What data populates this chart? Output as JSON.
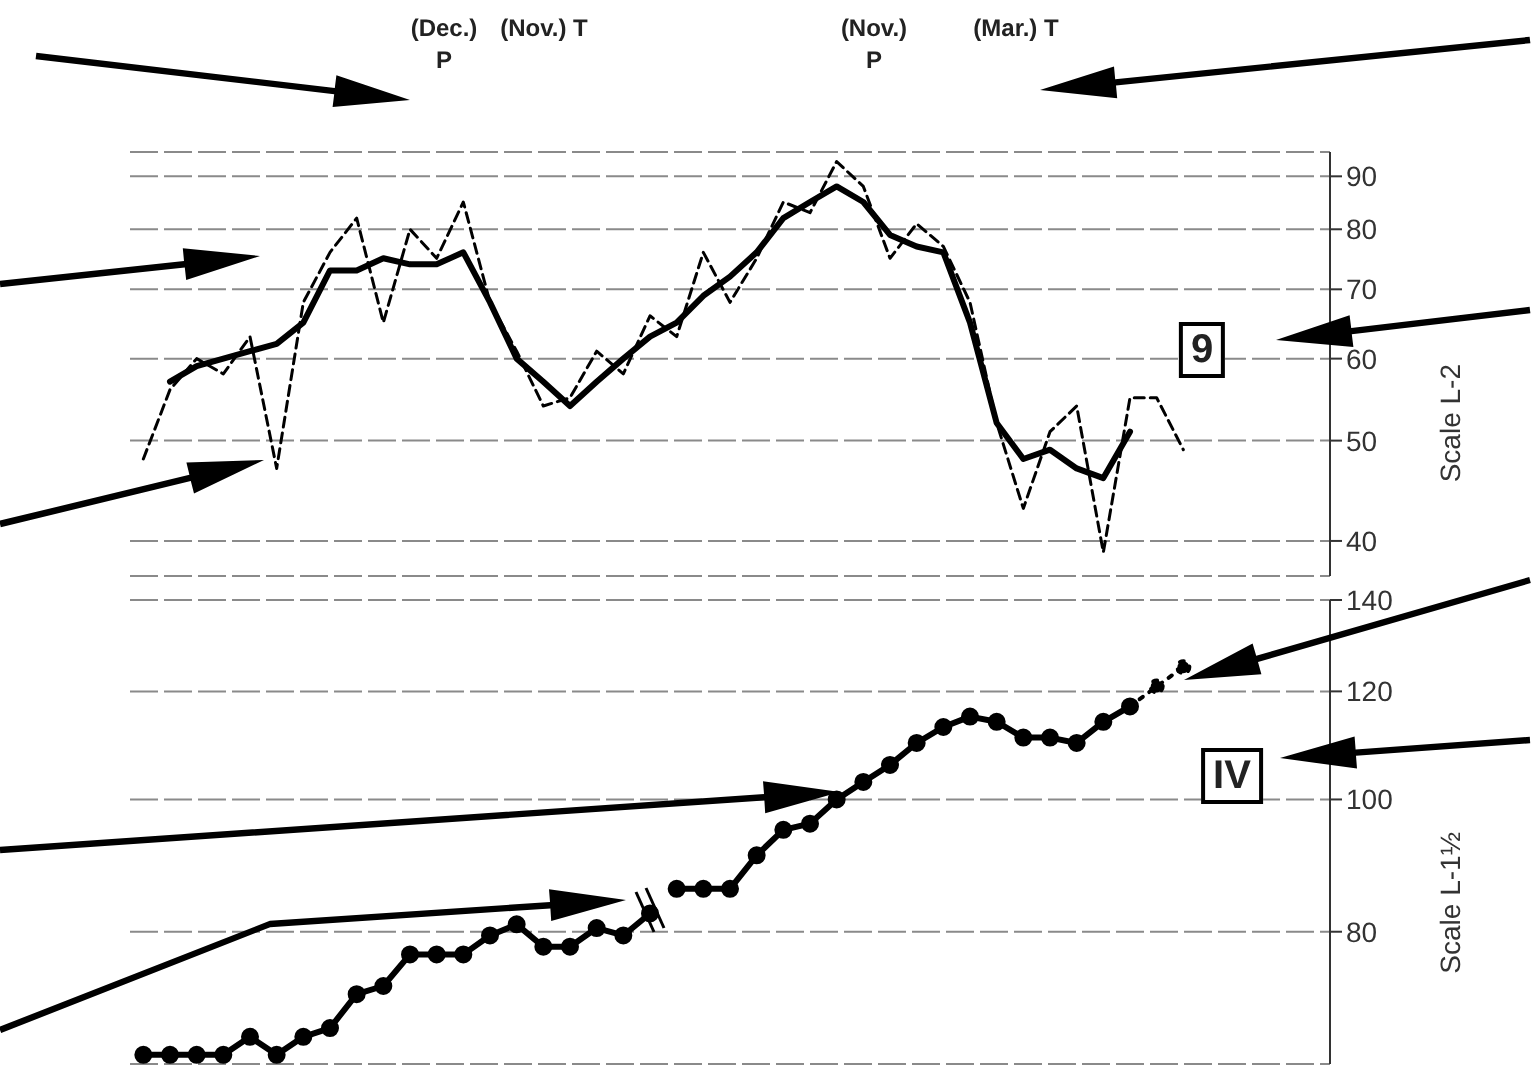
{
  "chart_data": [
    {
      "type": "line",
      "ylabel": "Scale L-2",
      "log": "y",
      "ylim": [
        37,
        95
      ],
      "yticks": [
        40,
        50,
        60,
        70,
        80,
        90
      ],
      "grid": "y",
      "tick_labels": "y",
      "marker": "none",
      "categories": [
        null,
        null,
        null,
        null,
        null,
        null,
        null,
        null,
        null,
        null,
        null,
        null,
        null,
        null,
        null,
        null,
        null,
        null,
        null,
        null,
        null,
        null,
        null,
        null,
        null,
        null,
        null,
        null,
        null,
        null,
        null,
        null,
        null,
        null,
        null,
        null,
        null,
        null,
        null,
        null,
        null,
        null,
        null,
        null,
        null
      ],
      "series": [
        {
          "color": "#000000",
          "line_style": "dashed",
          "values": [
            48,
            56,
            60,
            58,
            63,
            47,
            68,
            76,
            82,
            65,
            80,
            75,
            85,
            68,
            61,
            54,
            55,
            61,
            58,
            66,
            63,
            76,
            68,
            75,
            85,
            83,
            93,
            88,
            75,
            81,
            77,
            68,
            52,
            43,
            51,
            54,
            39,
            55,
            55,
            49,
            null,
            null,
            null,
            null,
            null
          ]
        },
        {
          "color": "#000000",
          "line_style": "solid",
          "values": [
            null,
            57,
            59,
            60,
            61,
            62,
            65,
            73,
            73,
            75,
            74,
            74,
            76,
            68,
            60,
            57,
            54,
            57,
            60,
            63,
            65,
            69,
            72,
            76,
            82,
            85,
            88,
            85,
            79,
            77,
            76,
            65,
            52,
            48,
            49,
            47,
            46,
            51,
            null,
            null,
            null,
            null,
            null,
            null,
            null
          ]
        }
      ],
      "annotations": [
        "(Dec.) P",
        "(Nov.) T",
        "(Nov.) P",
        "(Mar.) T",
        "9"
      ]
    },
    {
      "type": "line",
      "ylabel": "Scale L-1½",
      "log": "y",
      "ylim": [
        64,
        140
      ],
      "yticks": [
        80,
        100,
        120,
        140
      ],
      "grid": "y",
      "tick_labels": "y",
      "marker": "circle",
      "categories": [
        null,
        null,
        null,
        null,
        null,
        null,
        null,
        null,
        null,
        null,
        null,
        null,
        null,
        null,
        null,
        null,
        null,
        null,
        null,
        null,
        null,
        null,
        null,
        null,
        null,
        null,
        null,
        null,
        null,
        null,
        null,
        null,
        null,
        null,
        null,
        null,
        null,
        null,
        null,
        null,
        null,
        null,
        null,
        null,
        null
      ],
      "series": [
        {
          "color": "#000000",
          "line_style": "solid",
          "values": [
            65,
            65,
            65,
            65,
            67,
            65,
            67,
            68,
            72,
            73,
            77,
            77,
            77,
            79.5,
            81,
            78,
            78,
            80.5,
            79.5,
            82.5,
            null,
            null,
            null,
            null,
            null,
            null,
            null,
            null,
            null,
            null,
            null,
            null,
            null,
            null,
            null,
            null,
            null,
            null,
            null,
            null,
            null,
            null,
            null,
            null,
            null
          ]
        },
        {
          "color": "#000000",
          "line_style": "solid",
          "values": [
            null,
            null,
            null,
            null,
            null,
            null,
            null,
            null,
            null,
            null,
            null,
            null,
            null,
            null,
            null,
            null,
            null,
            null,
            null,
            null,
            86,
            86,
            86,
            91,
            95,
            96,
            100,
            103,
            106,
            110,
            113,
            115,
            114,
            111,
            111,
            110,
            114,
            117,
            null,
            null,
            null,
            null,
            null,
            null,
            null
          ]
        },
        {
          "color": "#000000",
          "line_style": "dotted",
          "values": [
            null,
            null,
            null,
            null,
            null,
            null,
            null,
            null,
            null,
            null,
            null,
            null,
            null,
            null,
            null,
            null,
            null,
            null,
            null,
            null,
            null,
            null,
            null,
            null,
            null,
            null,
            null,
            null,
            null,
            null,
            null,
            null,
            null,
            null,
            null,
            null,
            null,
            117,
            121,
            125,
            null,
            null,
            null,
            null,
            null
          ]
        }
      ],
      "annotations": [
        "IV"
      ]
    }
  ]
}
